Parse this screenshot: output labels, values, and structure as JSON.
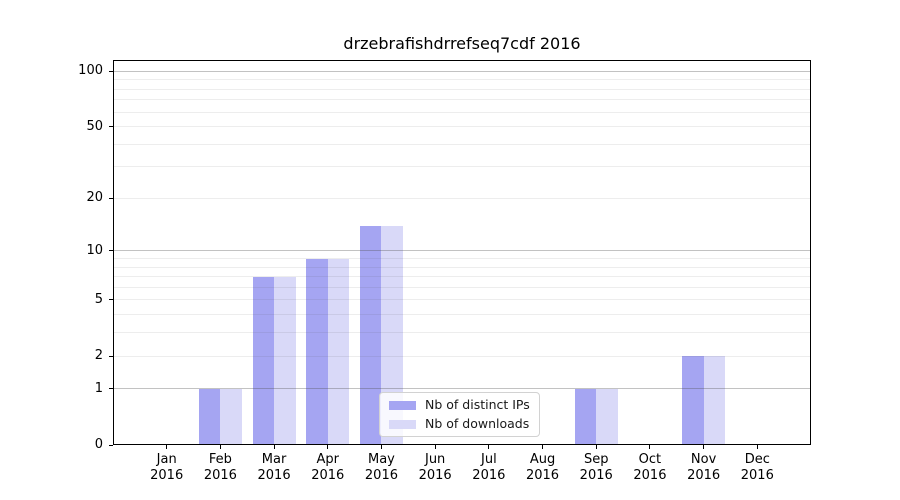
{
  "chart_data": {
    "type": "bar",
    "title": "drzebrafishdrrefseq7cdf 2016",
    "categories": [
      {
        "month": "Jan",
        "year": "2016"
      },
      {
        "month": "Feb",
        "year": "2016"
      },
      {
        "month": "Mar",
        "year": "2016"
      },
      {
        "month": "Apr",
        "year": "2016"
      },
      {
        "month": "May",
        "year": "2016"
      },
      {
        "month": "Jun",
        "year": "2016"
      },
      {
        "month": "Jul",
        "year": "2016"
      },
      {
        "month": "Aug",
        "year": "2016"
      },
      {
        "month": "Sep",
        "year": "2016"
      },
      {
        "month": "Oct",
        "year": "2016"
      },
      {
        "month": "Nov",
        "year": "2016"
      },
      {
        "month": "Dec",
        "year": "2016"
      }
    ],
    "series": [
      {
        "key": "distinct-ips",
        "name": "Nb of distinct IPs",
        "color": "#a5a5f2",
        "values": [
          0,
          1,
          7,
          9,
          14,
          0,
          0,
          0,
          1,
          0,
          2,
          0
        ]
      },
      {
        "key": "downloads",
        "name": "Nb of downloads",
        "color": "#d9d9f8",
        "values": [
          0,
          1,
          7,
          9,
          14,
          0,
          0,
          0,
          1,
          0,
          2,
          0
        ]
      }
    ],
    "xlabel": "",
    "ylabel": "",
    "yscale": "log10(1+x)",
    "ylim": [
      0,
      115
    ],
    "yticks": [
      0,
      1,
      2,
      5,
      10,
      20,
      50,
      100
    ],
    "major_grid_values": [
      1,
      10,
      100
    ],
    "minor_grid_values": [
      2,
      3,
      4,
      5,
      6,
      7,
      8,
      9,
      20,
      30,
      40,
      50,
      60,
      70,
      80,
      90
    ],
    "grid": true,
    "legend_position": "lower center-right",
    "colors": {
      "major_grid": "rgba(80,80,80,0.35)",
      "minor_grid": "rgba(80,80,80,0.10)",
      "axis": "#000000",
      "background": "#ffffff"
    }
  }
}
